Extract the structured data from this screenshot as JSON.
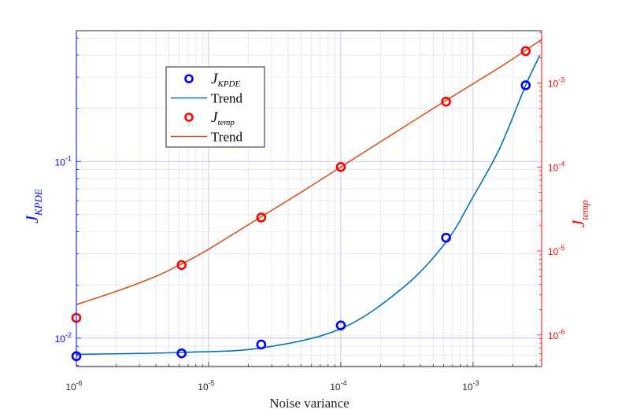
{
  "chart_data": {
    "type": "scatter",
    "xlabel": "Noise variance",
    "x_scale": "log",
    "xlim": [
      1e-06,
      0.0033
    ],
    "x_ticks": [
      {
        "value": 1e-06,
        "base": "10",
        "exp": "-6"
      },
      {
        "value": 1e-05,
        "base": "10",
        "exp": "-5"
      },
      {
        "value": 0.0001,
        "base": "10",
        "exp": "-4"
      },
      {
        "value": 0.001,
        "base": "10",
        "exp": "-3"
      }
    ],
    "left_axis": {
      "label_main": "J",
      "label_sub": "KPDE",
      "scale": "log",
      "ylim": [
        0.0069,
        0.55
      ],
      "color": "#0000ff",
      "ticks": [
        {
          "value": 0.01,
          "base": "10",
          "exp": "-2"
        },
        {
          "value": 0.1,
          "base": "10",
          "exp": "-1"
        }
      ]
    },
    "right_axis": {
      "label_main": "J",
      "label_sub": "temp",
      "scale": "log",
      "ylim": [
        4.2e-07,
        0.0042
      ],
      "color": "#ff0000",
      "ticks": [
        {
          "value": 1e-06,
          "base": "10",
          "exp": "-6"
        },
        {
          "value": 1e-05,
          "base": "10",
          "exp": "-5"
        },
        {
          "value": 0.0001,
          "base": "10",
          "exp": "-4"
        },
        {
          "value": 0.001,
          "base": "10",
          "exp": "-3"
        }
      ]
    },
    "grid": true,
    "legend_placement": "top-left",
    "series": [
      {
        "name": "KPDE",
        "kind": "markers",
        "axis": "left",
        "marker": "circle",
        "color": "#0000ff",
        "x": [
          1e-06,
          6.25e-06,
          2.5e-05,
          0.0001,
          0.000625,
          0.0025
        ],
        "y": [
          0.0079,
          0.0082,
          0.0092,
          0.0118,
          0.037,
          0.27
        ]
      },
      {
        "name": "Trend",
        "kind": "line",
        "axis": "left",
        "color": "#0072bd",
        "x": [
          1e-06,
          6.25e-06,
          2.5e-05,
          0.0001,
          0.0003,
          0.000625,
          0.001,
          0.0016,
          0.0025,
          0.0032
        ],
        "y": [
          0.0081,
          0.0083,
          0.0088,
          0.0113,
          0.0195,
          0.035,
          0.063,
          0.12,
          0.27,
          0.4
        ]
      },
      {
        "name": "temp",
        "kind": "markers",
        "axis": "right",
        "marker": "circle",
        "color": "#ff0000",
        "x": [
          1e-06,
          6.25e-06,
          2.5e-05,
          0.0001,
          0.000625,
          0.0025
        ],
        "y": [
          1.6e-06,
          6.8e-06,
          2.5e-05,
          0.0001,
          0.0006,
          0.0024
        ]
      },
      {
        "name": "Trend",
        "kind": "line",
        "axis": "right",
        "color": "#d95319",
        "x": [
          1e-06,
          2e-06,
          4e-06,
          6.25e-06,
          1e-05,
          2.5e-05,
          5e-05,
          0.0001,
          0.00025,
          0.000625,
          0.0015,
          0.0025,
          0.0033
        ],
        "y": [
          2.3e-06,
          3.3e-06,
          5e-06,
          7e-06,
          1.05e-05,
          2.55e-05,
          5e-05,
          0.0001,
          0.00025,
          0.00062,
          0.00145,
          0.00245,
          0.0033
        ]
      }
    ],
    "legend": [
      {
        "main": "J",
        "sub": "KPDE",
        "kind": "marker",
        "color": "#0000ff"
      },
      {
        "text": "Trend",
        "kind": "line",
        "color": "#0072bd"
      },
      {
        "main": "J",
        "sub": "temp",
        "kind": "marker",
        "color": "#ff0000"
      },
      {
        "text": "Trend",
        "kind": "line",
        "color": "#d95319"
      }
    ]
  }
}
